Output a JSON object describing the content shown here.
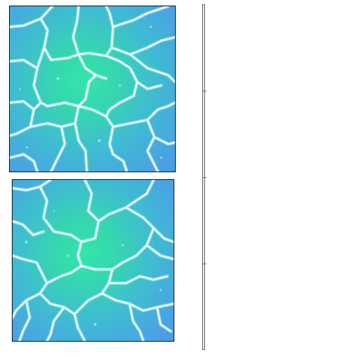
{
  "scene": {
    "description_free": true
  },
  "panels": [
    {
      "id": "top",
      "texture": "cracked-ice-texture"
    },
    {
      "id": "bottom",
      "texture": "cracked-ice-texture"
    }
  ],
  "colors": {
    "ice_center": "#32e6a8",
    "ice_edge": "#4b9ae6",
    "crack": "#ffffff",
    "frame": "#111111",
    "scrollbar": "#666666"
  }
}
